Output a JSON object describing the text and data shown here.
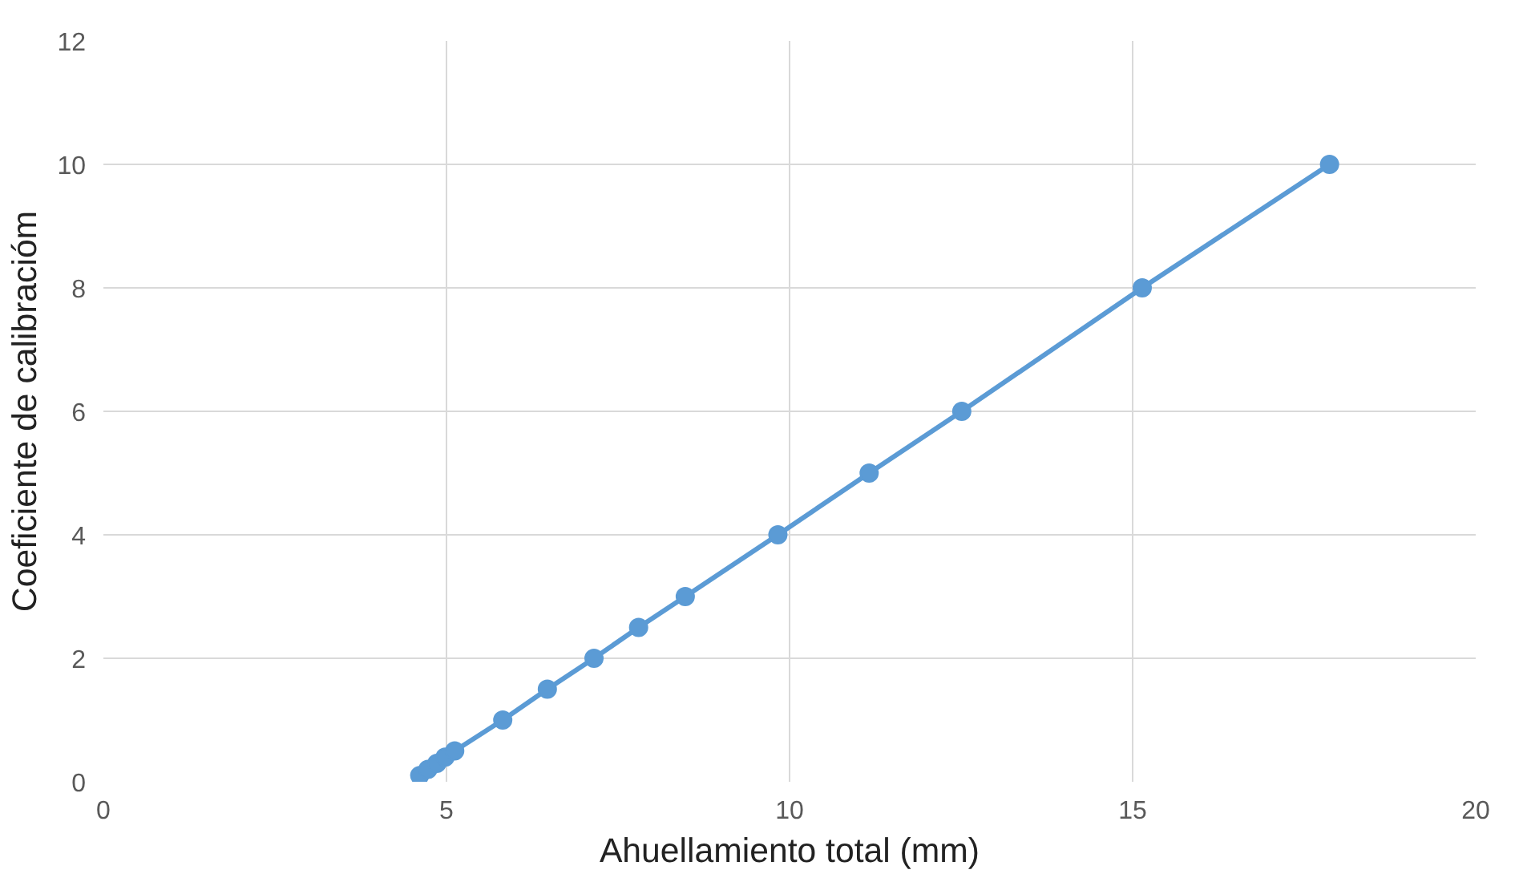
{
  "chart_data": {
    "type": "line",
    "xlabel": "Ahuellamiento total (mm)",
    "ylabel": "Coeficiente de calibracióm",
    "series": [
      {
        "color": "#5b9bd5",
        "x": [
          4.61,
          4.73,
          4.86,
          4.98,
          5.12,
          5.82,
          6.47,
          7.15,
          7.8,
          8.48,
          9.83,
          11.16,
          12.51,
          15.14,
          17.87
        ],
        "values": [
          0.1,
          0.2,
          0.3,
          0.4,
          0.5,
          1,
          1.5,
          2,
          2.5,
          3,
          4,
          5,
          6,
          8,
          10
        ]
      }
    ],
    "xlim": [
      0,
      20
    ],
    "xticks": [
      0,
      5,
      10,
      15,
      20
    ],
    "ylim": [
      0,
      12
    ],
    "yticks": [
      0,
      2,
      4,
      6,
      8,
      10,
      12
    ],
    "grid": true,
    "marker": "circle",
    "line_style": "solid"
  }
}
